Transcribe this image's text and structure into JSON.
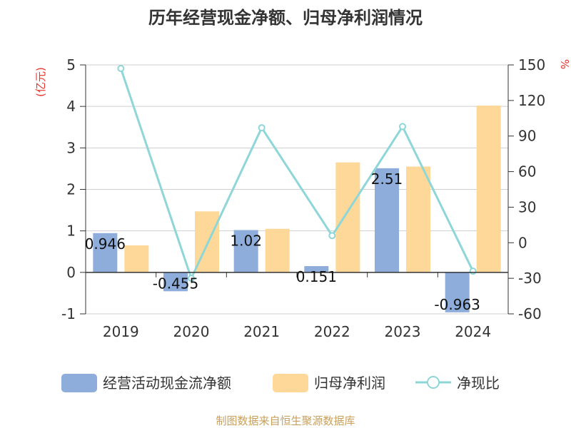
{
  "chart_data": {
    "type": "bar",
    "title": "历年经营现金净额、归母净利润情况",
    "categories": [
      "2019",
      "2020",
      "2021",
      "2022",
      "2023",
      "2024"
    ],
    "series": [
      {
        "name": "经营活动现金流净额",
        "type": "bar",
        "axis": "left",
        "color": "#8eaddb",
        "values": [
          0.946,
          -0.455,
          1.02,
          0.151,
          2.51,
          -0.963
        ],
        "labels": [
          "0.946",
          "-0.455",
          "1.02",
          "0.151",
          "2.51",
          "-0.963"
        ]
      },
      {
        "name": "归母净利润",
        "type": "bar",
        "axis": "left",
        "color": "#fdd898",
        "values": [
          0.65,
          1.47,
          1.05,
          2.65,
          2.55,
          4.02
        ]
      },
      {
        "name": "净现比",
        "type": "line",
        "axis": "right",
        "color": "#8ed6d8",
        "values": [
          147,
          -30,
          97,
          6,
          98,
          -24
        ]
      }
    ],
    "left_axis": {
      "unit": "(亿元)",
      "min": -1,
      "max": 5,
      "ticks": [
        "-1",
        "0",
        "1",
        "2",
        "3",
        "4",
        "5"
      ]
    },
    "right_axis": {
      "unit": "%",
      "min": -60,
      "max": 150,
      "ticks": [
        "-60",
        "-30",
        "0",
        "30",
        "60",
        "90",
        "120",
        "150"
      ]
    },
    "grid": true,
    "legend_position": "bottom",
    "source": "制图数据来自恒生聚源数据库"
  }
}
